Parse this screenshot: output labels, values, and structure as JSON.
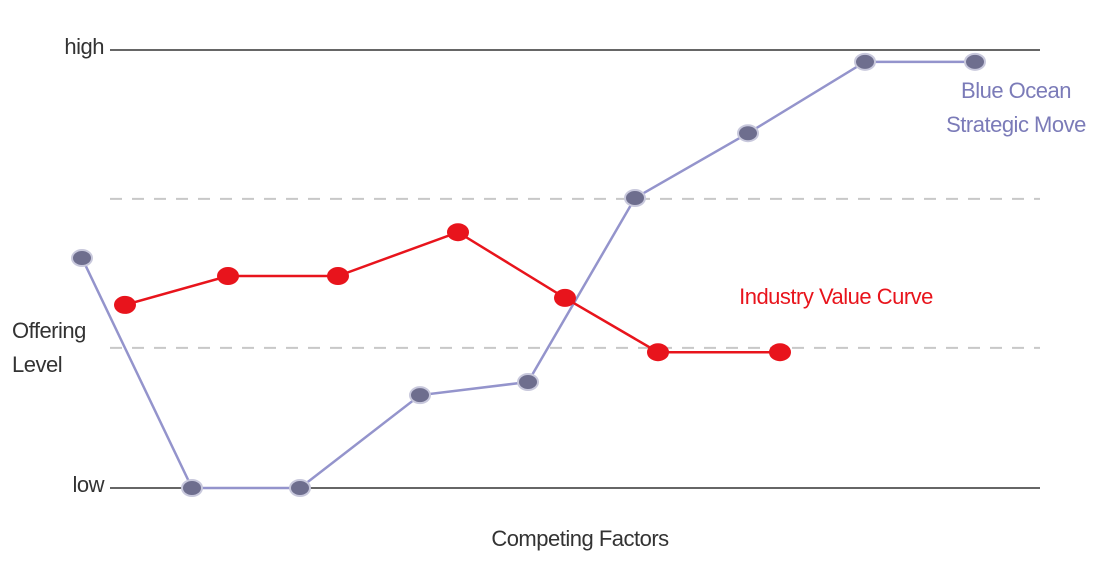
{
  "chart_data": {
    "type": "line",
    "xlabel": "Competing Factors",
    "ylabel_lines": [
      "Offering",
      "Level"
    ],
    "xlim": [
      0,
      100
    ],
    "ylim": [
      0,
      100
    ],
    "yticks": [
      {
        "value": 0,
        "label": "low"
      },
      {
        "value": 100,
        "label": "high"
      }
    ],
    "dashed_gridlines": [
      66,
      32
    ],
    "series": [
      {
        "label_lines": [
          "Blue Ocean",
          "Strategic Move"
        ],
        "color": "#9494cc",
        "marker_color": "#6e6e8e",
        "x": [
          2.2,
          13.2,
          24,
          36,
          46.8,
          57.5,
          68.8,
          80.5,
          91.5
        ],
        "values": [
          52.5,
          0,
          0,
          21.2,
          24.2,
          66.2,
          81,
          97.3,
          97.3
        ]
      },
      {
        "name": "Industry Value Curve",
        "color": "#e8141c",
        "marker_color": "#e8141c",
        "x": [
          6.5,
          16.8,
          27.8,
          39.8,
          50.5,
          59.8,
          72
        ],
        "values": [
          41.8,
          48.4,
          48.4,
          58.4,
          43.4,
          31,
          31
        ]
      }
    ]
  }
}
